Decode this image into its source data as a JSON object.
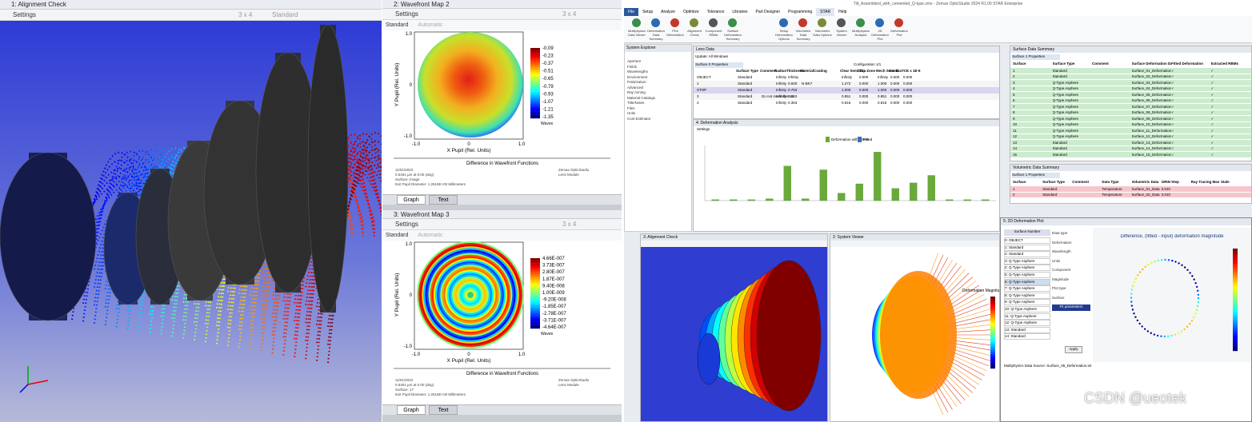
{
  "left_window": {
    "title": "1: Alignment Check",
    "settings": "Settings",
    "layout": "3 x 4",
    "mode": "Standard"
  },
  "wavefront_2": {
    "title": "2: Wavefront Map 2",
    "settings": "Settings",
    "layout": "3 x 4",
    "mode": "Standard",
    "automatic": "Automatic",
    "x_label": "X Pupil (Rel. Units)",
    "y_label": "Y Pupil (Rel. Units)",
    "x_ticks": [
      "-1.0",
      "0",
      "1.0"
    ],
    "y_ticks": [
      "1.0",
      "0",
      "-1.0"
    ],
    "colorbar": [
      "-0.09",
      "-0.23",
      "-0.37",
      "-0.51",
      "-0.65",
      "-0.79",
      "-0.93",
      "-1.07",
      "-1.21",
      "-1.35"
    ],
    "colorbar_unit": "Waves",
    "footer_heading": "Difference in Wavefront Functions",
    "footer_left": [
      "11/01/2023",
      "0.5461 µm at 0.00 (deg)",
      "Surface: Image",
      "Exit Pupil Diameter: 1.2515E+00 Millimeters"
    ],
    "footer_right": [
      "Zemax OpticStudio",
      "Lens Module"
    ],
    "tabs": [
      "Graph",
      "Text"
    ]
  },
  "wavefront_3": {
    "title": "3: Wavefront Map 3",
    "settings": "Settings",
    "layout": "3 x 4",
    "mode": "Standard",
    "automatic": "Automatic",
    "x_label": "X Pupil (Rel. Units)",
    "y_label": "Y Pupil (Rel. Units)",
    "x_ticks": [
      "-1.0",
      "0",
      "1.0"
    ],
    "y_ticks": [
      "1.0",
      "0",
      "-1.0"
    ],
    "colorbar": [
      "4.66E-007",
      "3.73E-007",
      "2.80E-007",
      "1.87E-007",
      "9.40E-008",
      "1.00E-009",
      "-9.20E-008",
      "-1.85E-007",
      "-2.78E-007",
      "-3.71E-007",
      "-4.64E-007"
    ],
    "colorbar_unit": "Waves",
    "footer_heading": "Difference in Wavefront Functions",
    "footer_left": [
      "11/01/2023",
      "0.5461 µm at 0.00 (deg)",
      "Surface: 17",
      "Exit Pupil Diameter: 1.2515E+00 Millimeters"
    ],
    "footer_right": [
      "Zemax OpticStudio",
      "Lens Module"
    ],
    "tabs": [
      "Graph",
      "Text"
    ]
  },
  "opticstudio": {
    "app_title": "Tilt_Assembled_with_cemented_Q-type.zmx - Zemax OpticStudio 2024 R1.00 STAR Enterprise",
    "ribbon_tabs": [
      "File",
      "Setup",
      "Analyze",
      "Optimize",
      "Tolerance",
      "Libraries",
      "Part Designer",
      "Programming",
      "STAR",
      "Help"
    ],
    "ribbon_buttons": [
      "Multiphysics Data Viewer",
      "Deformation Data Summary",
      "FEA Deformation",
      "Alignment Check",
      "Component RBMs",
      "Surface Deformation Summary",
      "Setup Deformation Options",
      "Volumetric Data Summary",
      "Volumetric Data Options",
      "System Viewer",
      "Multiphysics Analysis",
      "2D Deformation Plot",
      "Deformation Plot"
    ],
    "system_explorer": {
      "title": "System Explorer",
      "items": [
        "Aperture",
        "Fields",
        "Wavelengths",
        "Environment",
        "Polarization",
        "Advanced",
        "Ray Aiming",
        "Material Catalogs",
        "Title/Notes",
        "Files",
        "Units",
        "Cost Estimator"
      ]
    },
    "lens_data": {
      "title": "Lens Data",
      "update": "Update: All Windows",
      "tab": "Surface 0 Properties",
      "config": "Configuration 1/1",
      "columns": [
        "Surface Type",
        "Comment",
        "Radius",
        "Thickness",
        "Material",
        "Coating",
        "Clear Semi-Dia",
        "Chip Zone",
        "Mech Semi-Dia",
        "Conic",
        "TCE x 1E-6"
      ],
      "rows": [
        [
          "OBJECT",
          "Standard",
          "",
          "Infinity",
          "Infinity",
          "",
          "",
          "Infinity",
          "0.000",
          "Infinity",
          "0.000",
          "0.000"
        ],
        [
          "1",
          "Standard",
          "",
          "Infinity",
          "0.500",
          "N-BK7",
          "",
          "1.272",
          "0.000",
          "1.000",
          "0.000",
          "0.000"
        ],
        [
          "STOP",
          "Standard",
          "",
          "Infinity",
          "0.753",
          "",
          "",
          "1.000",
          "0.000",
          "1.000",
          "0.000",
          "0.000"
        ],
        [
          "3",
          "Standard",
          "Do not invert this surface",
          "Infinity",
          "0.353",
          "",
          "",
          "0.851",
          "0.000",
          "0.851",
          "0.000",
          "0.000"
        ],
        [
          "4",
          "Standard",
          "",
          "Infinity",
          "0.353",
          "",
          "",
          "0.816",
          "0.000",
          "0.816",
          "0.000",
          "0.000"
        ]
      ]
    },
    "deformation_chart": {
      "title": "4: Deformation Analysis",
      "settings": "Settings",
      "legend": [
        "Deformation with RBMs",
        "Fitted"
      ],
      "values": [
        1,
        1,
        1,
        2,
        37,
        2,
        33,
        8,
        18,
        52,
        13,
        19,
        27,
        1,
        1,
        1
      ]
    },
    "surface_summary": {
      "title": "Surface Data Summary",
      "tab": "Surface 1 Properties",
      "columns": [
        "Surface",
        "Surface Type",
        "Comment",
        "Surface Deformation Data File",
        "Fitted Deformation",
        "Extracted RBMs"
      ],
      "rows": [
        [
          "1",
          "Standard",
          "",
          "Surface_01_Deformation.txt",
          "✓",
          "✓"
        ],
        [
          "2",
          "Standard",
          "",
          "Surface_02_Deformation.txt",
          "✓",
          "✓"
        ],
        [
          "3",
          "Q-Type Asphere",
          "",
          "Surface_03_Deformation.txt",
          "✓",
          "✓"
        ],
        [
          "4",
          "Q-Type Asphere",
          "",
          "Surface_04_Deformation.txt",
          "✓",
          "✓"
        ],
        [
          "5",
          "Q-Type Asphere",
          "",
          "Surface_05_Deformation.txt",
          "✓",
          "✓"
        ],
        [
          "6",
          "Q-Type Asphere",
          "",
          "Surface_06_Deformation.txt",
          "✓",
          "✓"
        ],
        [
          "7",
          "Q-Type Asphere",
          "",
          "Surface_07_Deformation.txt",
          "✓",
          "✓"
        ],
        [
          "8",
          "Q-Type Asphere",
          "",
          "Surface_08_Deformation.txt",
          "✓",
          "✓"
        ],
        [
          "9",
          "Q-Type Asphere",
          "",
          "Surface_09_Deformation.txt",
          "✓",
          "✓"
        ],
        [
          "10",
          "Q-Type Asphere",
          "",
          "Surface_10_Deformation.txt",
          "✓",
          "✓"
        ],
        [
          "11",
          "Q-Type Asphere",
          "",
          "Surface_11_Deformation.txt",
          "✓",
          "✓"
        ],
        [
          "12",
          "Q-Type Asphere",
          "",
          "Surface_12_Deformation.txt",
          "✓",
          "✓"
        ],
        [
          "13",
          "Standard",
          "",
          "Surface_13_Deformation.txt",
          "✓",
          "✓"
        ],
        [
          "14",
          "Standard",
          "",
          "Surface_14_Deformation.txt",
          "✓",
          "✓"
        ],
        [
          "15",
          "Standard",
          "",
          "Surface_15_Deformation.txt",
          "✓",
          "✓"
        ]
      ]
    },
    "volumetric_summary": {
      "title": "Volumetric Data Summary",
      "tab": "Surface 1 Properties",
      "columns": [
        "Surface",
        "Surface Type",
        "Comment",
        "Data Type",
        "Volumetric Data",
        "GRIN Step",
        "Ray Tracing Max",
        "Stale"
      ],
      "rows": [
        [
          "1",
          "Standard",
          "",
          "Temperature",
          "Surface_01_Data",
          "0.010",
          "",
          ""
        ],
        [
          "2",
          "Standard",
          "",
          "Temperature",
          "Surface_02_Data",
          "0.010",
          "",
          ""
        ]
      ]
    },
    "alignment_window": {
      "title": "3: Alignment Check"
    },
    "system_viewer": {
      "title": "2: System Viewer",
      "legend_title": "Deformation Magnitude"
    },
    "deformation_dialog": {
      "title": "5: 2D Deformation Plot",
      "plot_title": "Difference, (fitted - input) deformation magnitude",
      "surface_list_title": "Surface Number",
      "surfaces": [
        "0: OBJECT",
        "1: Standard",
        "2: Standard",
        "3: Q-Type Asphere",
        "4: Q-Type Asphere",
        "5: Q-Type Asphere",
        "6: Q-Type Asphere",
        "7: Q-Type Asphere",
        "8: Q-Type Asphere",
        "9: Q-Type Asphere",
        "10: Q-Type Asphere",
        "11: Q-Type Asphere",
        "12: Q-Type Asphere",
        "13: Standard",
        "14: Standard"
      ],
      "fields": [
        "Data type",
        "Deformation",
        "Wavelength",
        "Units",
        "Component",
        "Magnitude",
        "Plot type",
        "Surface",
        "Fit parameters"
      ],
      "button": "Apply",
      "status": "Multiphysics Data Source: Surface_06_Deformation.txt"
    }
  },
  "watermark": "CSDN @ueotek"
}
